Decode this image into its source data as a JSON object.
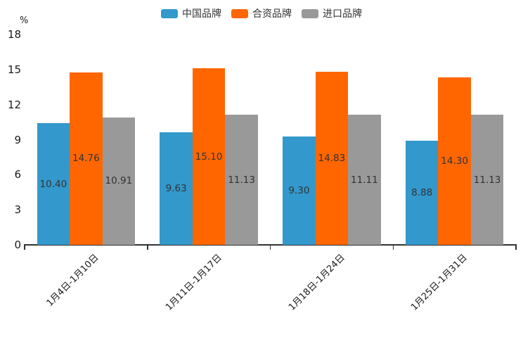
{
  "chart_data": {
    "type": "bar",
    "title": "",
    "xlabel": "",
    "ylabel": "%",
    "ylim": [
      0,
      18
    ],
    "y_ticks": [
      0,
      3,
      6,
      9,
      12,
      15,
      18
    ],
    "grid": false,
    "legend_position": "top-center",
    "bar_label_position": "inside-center",
    "x_label_rotate": 45,
    "categories": [
      "1月4日-1月10日",
      "1月11日-1月17日",
      "1月18日-1月24日",
      "1月25日-1月31日"
    ],
    "series": [
      {
        "name": "中国品牌",
        "color": "#3398CC",
        "values": [
          10.4,
          9.63,
          9.3,
          8.88
        ],
        "labels": [
          "10.40",
          "9.63",
          "9.30",
          "8.88"
        ]
      },
      {
        "name": "合资品牌",
        "color": "#FF6600",
        "values": [
          14.76,
          15.1,
          14.83,
          14.3
        ],
        "labels": [
          "14.76",
          "15.10",
          "14.83",
          "14.30"
        ]
      },
      {
        "name": "进口品牌",
        "color": "#999999",
        "values": [
          10.91,
          11.13,
          11.11,
          11.13
        ],
        "labels": [
          "10.91",
          "11.13",
          "11.11",
          "11.13"
        ]
      }
    ]
  },
  "colors": {
    "axis": "#333333",
    "tick_label": "#1a1a1a",
    "bar_label": "#333333"
  }
}
